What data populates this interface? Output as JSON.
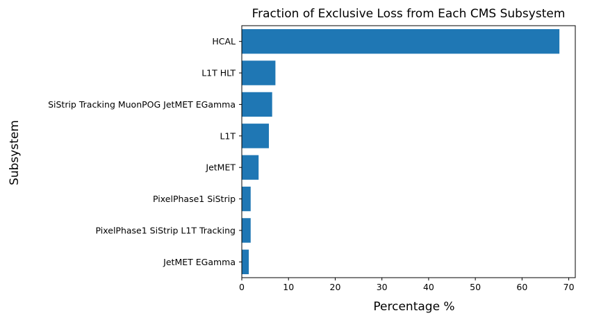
{
  "chart_data": {
    "type": "bar",
    "orientation": "horizontal",
    "title": "Fraction of Exclusive Loss from Each CMS Subsystem",
    "xlabel": "Percentage %",
    "ylabel": "Subsystem",
    "categories": [
      "HCAL",
      "L1T HLT",
      "SiStrip Tracking MuonPOG JetMET EGamma",
      "L1T",
      "JetMET",
      "PixelPhase1 SiStrip",
      "PixelPhase1 SiStrip L1T Tracking",
      "JetMET EGamma"
    ],
    "values": [
      68.0,
      7.2,
      6.5,
      5.8,
      3.6,
      1.9,
      1.9,
      1.5
    ],
    "xlim": [
      0,
      71.4
    ],
    "xticks": [
      0,
      10,
      20,
      30,
      40,
      50,
      60,
      70
    ],
    "grid": false,
    "bar_color": "#1f77b4"
  }
}
